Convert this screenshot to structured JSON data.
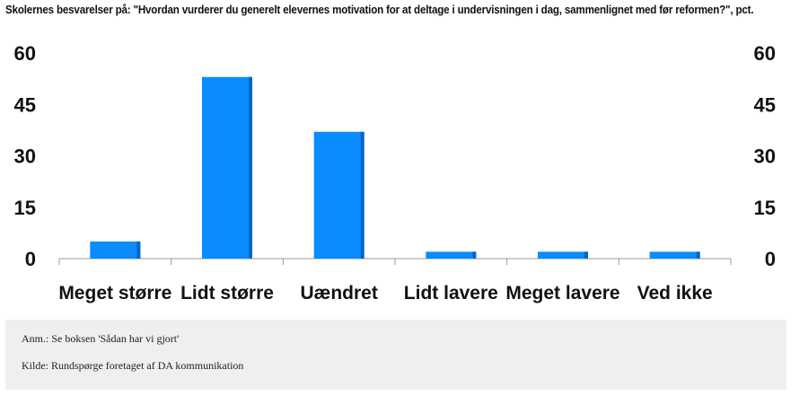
{
  "chart_data": {
    "type": "bar",
    "title": "Skolernes besvarelser på: \"Hvordan vurderer du generelt elevernes motivation for at deltage i undervisningen i dag, sammenlignet med før reformen?\", pct.",
    "categories": [
      "Meget større",
      "Lidt større",
      "Uændret",
      "Lidt lavere",
      "Meget lavere",
      "Ved ikke"
    ],
    "values": [
      5,
      53,
      37,
      2,
      2,
      2
    ],
    "ylim": [
      0,
      60
    ],
    "yticks": [
      "0",
      "15",
      "30",
      "45",
      "60"
    ],
    "xlabel": "",
    "ylabel": "",
    "grid": false,
    "bar_color": "#0a8cff",
    "bar_shade_color": "#0066cc"
  },
  "notes": {
    "anm": "Anm.: Se boksen 'Sådan har vi gjort'",
    "kilde": "Kilde: Rundspørge foretaget af DA kommunikation"
  }
}
